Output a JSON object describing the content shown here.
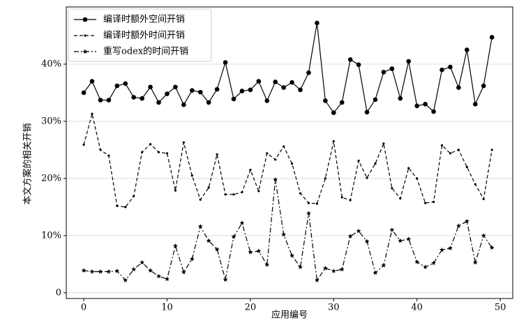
{
  "chart_data": {
    "type": "line",
    "xlabel": "应用编号",
    "ylabel": "本文方案的相关开销",
    "x": [
      0,
      1,
      2,
      3,
      4,
      5,
      6,
      7,
      8,
      9,
      10,
      11,
      12,
      13,
      14,
      15,
      16,
      17,
      18,
      19,
      20,
      21,
      22,
      23,
      24,
      25,
      26,
      27,
      28,
      29,
      30,
      31,
      32,
      33,
      34,
      35,
      36,
      37,
      38,
      39,
      40,
      41,
      42,
      43,
      44,
      45,
      46,
      47,
      48,
      49
    ],
    "series": [
      {
        "name": "编译时额外空间开销",
        "color": "#000000",
        "linestyle": "solid",
        "marker": "circle",
        "values": [
          35,
          37,
          33.7,
          33.7,
          36.2,
          36.6,
          34.2,
          34,
          36,
          33.3,
          34.8,
          36,
          32.9,
          35.4,
          35.1,
          33.3,
          35.6,
          40.3,
          33.9,
          35.3,
          35.5,
          37,
          33.6,
          36.9,
          35.9,
          36.8,
          35.5,
          38.5,
          47.2,
          33.6,
          31.5,
          33.3,
          40.8,
          39.9,
          31.6,
          33.8,
          38.6,
          39.2,
          34,
          40.5,
          32.7,
          33,
          31.7,
          39,
          39.5,
          35.9,
          42.5,
          33,
          36.2,
          44.7
        ]
      },
      {
        "name": "编译时额外时间开销",
        "color": "#000000",
        "linestyle": "dashed",
        "marker": "dot",
        "values": [
          25.9,
          31.3,
          25,
          24,
          15.2,
          15,
          16.9,
          24.6,
          26,
          24.6,
          24.4,
          17.9,
          26.3,
          20.5,
          16.3,
          18.4,
          24.2,
          17.2,
          17.2,
          17.6,
          21.5,
          17.8,
          24.4,
          23.3,
          25.6,
          22.6,
          17.4,
          15.7,
          15.6,
          20,
          26.5,
          16.7,
          16.2,
          23.1,
          20.1,
          22.6,
          26.1,
          18.3,
          16.5,
          21.8,
          20,
          15.7,
          15.9,
          25.8,
          24.4,
          25,
          22,
          19,
          16.4,
          25
        ]
      },
      {
        "name": "重写odex的时间开销",
        "color": "#000000",
        "linestyle": "dashdot",
        "marker": "star",
        "values": [
          3.9,
          3.7,
          3.7,
          3.7,
          3.8,
          2.2,
          4.1,
          5.3,
          3.9,
          2.9,
          2.4,
          8.2,
          3.6,
          5.9,
          11.6,
          9.1,
          7.6,
          2.3,
          9.8,
          12.2,
          7.1,
          7.3,
          4.9,
          19.8,
          10.2,
          6.5,
          4.5,
          13.9,
          2.2,
          4.3,
          3.8,
          4.1,
          9.9,
          10.8,
          9,
          3.5,
          4.8,
          11,
          9.1,
          9.4,
          5.4,
          4.5,
          5.2,
          7.5,
          7.8,
          11.7,
          12.5,
          5.3,
          10,
          7.9
        ]
      }
    ],
    "xlim": [
      -2.1,
      51.5
    ],
    "xticks": [
      0,
      10,
      20,
      30,
      40,
      50
    ],
    "ylim": [
      -1,
      50
    ],
    "yticks": [
      0,
      {
        "value": 10,
        "label": "10%"
      },
      {
        "value": 20,
        "label": "20%"
      },
      {
        "value": 30,
        "label": "30%"
      },
      {
        "value": 40,
        "label": "40%"
      }
    ],
    "grid": true,
    "legend": "upper-left"
  }
}
